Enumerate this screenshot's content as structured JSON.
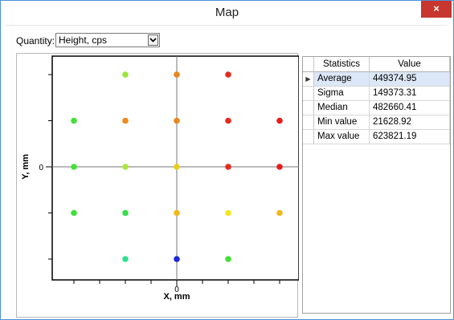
{
  "window": {
    "title": "Map",
    "close_label": "×"
  },
  "quantity": {
    "label": "Quantity:",
    "selected": "Height, cps"
  },
  "plot": {
    "x_axis_label": "X, mm",
    "y_axis_label": "Y, mm",
    "x_tick_label": "0",
    "y_tick_label": "0",
    "points": [
      {
        "x": -2,
        "y": 2,
        "color": "#9be53a"
      },
      {
        "x": 0,
        "y": 2,
        "color": "#e8851c"
      },
      {
        "x": 2,
        "y": 2,
        "color": "#e82a1c"
      },
      {
        "x": -4,
        "y": 1,
        "color": "#43e036"
      },
      {
        "x": -2,
        "y": 1,
        "color": "#ee8a1a"
      },
      {
        "x": 0,
        "y": 1,
        "color": "#e8851c"
      },
      {
        "x": 2,
        "y": 1,
        "color": "#e82a1c"
      },
      {
        "x": 4,
        "y": 1,
        "color": "#e81c1c"
      },
      {
        "x": -4,
        "y": 0,
        "color": "#43e036"
      },
      {
        "x": -2,
        "y": 0,
        "color": "#a8e83a"
      },
      {
        "x": 0,
        "y": 0,
        "color": "#e8cf1c"
      },
      {
        "x": 2,
        "y": 0,
        "color": "#e82a1c"
      },
      {
        "x": 4,
        "y": 0,
        "color": "#e81c1c"
      },
      {
        "x": -4,
        "y": -1,
        "color": "#3ee036"
      },
      {
        "x": -2,
        "y": -1,
        "color": "#36e04a"
      },
      {
        "x": 0,
        "y": -1,
        "color": "#f0b81c"
      },
      {
        "x": 2,
        "y": -1,
        "color": "#f0e81c"
      },
      {
        "x": 4,
        "y": -1,
        "color": "#f0b81c"
      },
      {
        "x": -2,
        "y": -2,
        "color": "#2ee08e"
      },
      {
        "x": 0,
        "y": -2,
        "color": "#1c26d6"
      },
      {
        "x": 2,
        "y": -2,
        "color": "#43e036"
      }
    ]
  },
  "stats": {
    "headers": [
      "Statistics",
      "Value"
    ],
    "rows": [
      {
        "name": "Average",
        "value": "449374.95",
        "selected": true
      },
      {
        "name": "Sigma",
        "value": "149373.31"
      },
      {
        "name": "Median",
        "value": "482660.41"
      },
      {
        "name": "Min value",
        "value": "21628.92"
      },
      {
        "name": "Max value",
        "value": "623821.19"
      }
    ],
    "current_row_marker": "▶"
  },
  "colors": {
    "window_border": "#4a90d9",
    "close_button": "#c7362f",
    "selected_row": "#dce8f7"
  }
}
